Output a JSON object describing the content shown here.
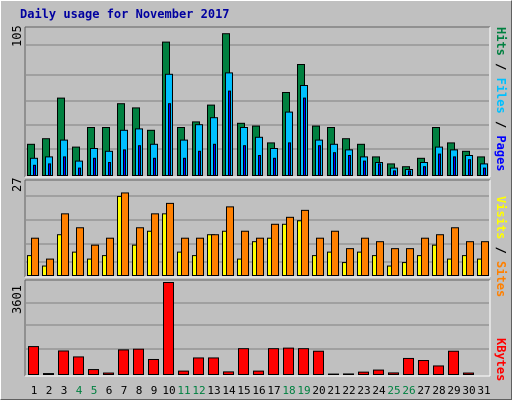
{
  "title": "Daily usage for November 2017",
  "colors": {
    "hits": "#008040",
    "files": "#00c0ff",
    "pages": "#0000ff",
    "visits": "#ffff00",
    "sites": "#ff8000",
    "kbytes": "#ff0000",
    "weekend": "#008040",
    "weekday": "#000000"
  },
  "axis_labels": {
    "top_max": "105",
    "mid_max": "27",
    "bot_max": "3601",
    "right_top": {
      "pages": "Pages",
      "files": "Files",
      "hits": "Hits",
      "sep": " / "
    },
    "right_mid": {
      "sites": "Sites",
      "visits": "Visits",
      "sep": " / "
    },
    "right_bot": {
      "kbytes": "KBytes"
    }
  },
  "chart_data": [
    {
      "type": "bar",
      "title": "Daily usage for November 2017",
      "categories": [
        "1",
        "2",
        "3",
        "4",
        "5",
        "6",
        "7",
        "8",
        "9",
        "10",
        "11",
        "12",
        "13",
        "14",
        "15",
        "16",
        "17",
        "18",
        "19",
        "20",
        "21",
        "22",
        "23",
        "24",
        "25",
        "26",
        "27",
        "28",
        "29",
        "30",
        "31"
      ],
      "weekend_days": [
        "4",
        "5",
        "11",
        "12",
        "18",
        "19",
        "25",
        "26"
      ],
      "ylim": [
        0,
        105
      ],
      "series": [
        {
          "name": "Hits",
          "values": [
            23,
            27,
            56,
            21,
            35,
            35,
            52,
            49,
            33,
            96,
            35,
            39,
            51,
            102,
            38,
            36,
            24,
            60,
            80,
            36,
            35,
            27,
            23,
            14,
            9,
            7,
            13,
            35,
            24,
            18,
            14
          ]
        },
        {
          "name": "Files",
          "values": [
            13,
            14,
            26,
            11,
            20,
            18,
            33,
            34,
            23,
            73,
            26,
            37,
            42,
            74,
            35,
            28,
            20,
            46,
            65,
            26,
            23,
            19,
            14,
            10,
            6,
            5,
            10,
            21,
            19,
            15,
            9
          ]
        },
        {
          "name": "Pages",
          "values": [
            8,
            9,
            14,
            6,
            13,
            10,
            19,
            22,
            13,
            52,
            13,
            18,
            23,
            61,
            22,
            15,
            13,
            24,
            56,
            22,
            17,
            15,
            11,
            9,
            4,
            4,
            7,
            16,
            14,
            12,
            6
          ]
        }
      ]
    },
    {
      "type": "bar",
      "categories": [
        "1",
        "2",
        "3",
        "4",
        "5",
        "6",
        "7",
        "8",
        "9",
        "10",
        "11",
        "12",
        "13",
        "14",
        "15",
        "16",
        "17",
        "18",
        "19",
        "20",
        "21",
        "22",
        "23",
        "24",
        "25",
        "26",
        "27",
        "28",
        "29",
        "30",
        "31"
      ],
      "ylim": [
        0,
        27
      ],
      "series": [
        {
          "name": "Visits",
          "values": [
            6,
            3,
            12,
            7,
            5,
            6,
            23,
            9,
            13,
            18,
            7,
            6,
            12,
            13,
            5,
            10,
            11,
            15,
            16,
            6,
            7,
            4,
            7,
            6,
            3,
            4,
            6,
            9,
            5,
            6,
            5
          ]
        },
        {
          "name": "Sites",
          "values": [
            11,
            5,
            18,
            14,
            9,
            11,
            24,
            14,
            18,
            21,
            11,
            11,
            12,
            20,
            13,
            11,
            15,
            17,
            19,
            11,
            13,
            8,
            11,
            10,
            8,
            8,
            11,
            12,
            14,
            10,
            10
          ]
        }
      ]
    },
    {
      "type": "bar",
      "categories": [
        "1",
        "2",
        "3",
        "4",
        "5",
        "6",
        "7",
        "8",
        "9",
        "10",
        "11",
        "12",
        "13",
        "14",
        "15",
        "16",
        "17",
        "18",
        "19",
        "20",
        "21",
        "22",
        "23",
        "24",
        "25",
        "26",
        "27",
        "28",
        "29",
        "30",
        "31"
      ],
      "ylim": [
        0,
        3601
      ],
      "series": [
        {
          "name": "KBytes",
          "values": [
            1120,
            75,
            950,
            720,
            230,
            95,
            990,
            1020,
            620,
            3601,
            170,
            680,
            680,
            140,
            1040,
            170,
            1040,
            1060,
            1040,
            940,
            55,
            60,
            130,
            210,
            100,
            660,
            580,
            370,
            940,
            95,
            0
          ]
        }
      ]
    }
  ]
}
